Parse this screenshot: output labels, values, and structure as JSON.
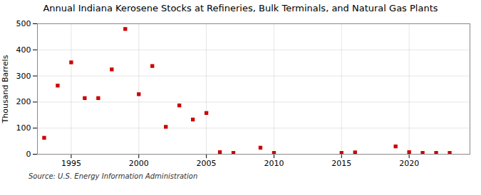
{
  "chart_data": {
    "type": "scatter",
    "title": "Annual Indiana Kerosene Stocks at Refineries, Bulk Terminals, and Natural Gas Plants",
    "ylabel": "Thousand Barrels",
    "source": "Source: U.S. Energy Information Administration",
    "x": [
      1993,
      1994,
      1995,
      1996,
      1997,
      1998,
      1999,
      2000,
      2001,
      2002,
      2003,
      2004,
      2005,
      2006,
      2007,
      2009,
      2010,
      2015,
      2016,
      2019,
      2020,
      2021,
      2022,
      2023
    ],
    "values": [
      63,
      263,
      352,
      215,
      215,
      325,
      480,
      230,
      338,
      105,
      187,
      133,
      158,
      8,
      5,
      25,
      5,
      5,
      7,
      30,
      8,
      5,
      5,
      5
    ],
    "color": "#cc0000",
    "marker": "square",
    "xlim": [
      1992.5,
      2024.5
    ],
    "ylim": [
      0,
      500
    ],
    "xticks": [
      1995,
      2000,
      2005,
      2010,
      2015,
      2020
    ],
    "yticks": [
      0,
      100,
      200,
      300,
      400,
      500
    ],
    "grid": true
  }
}
